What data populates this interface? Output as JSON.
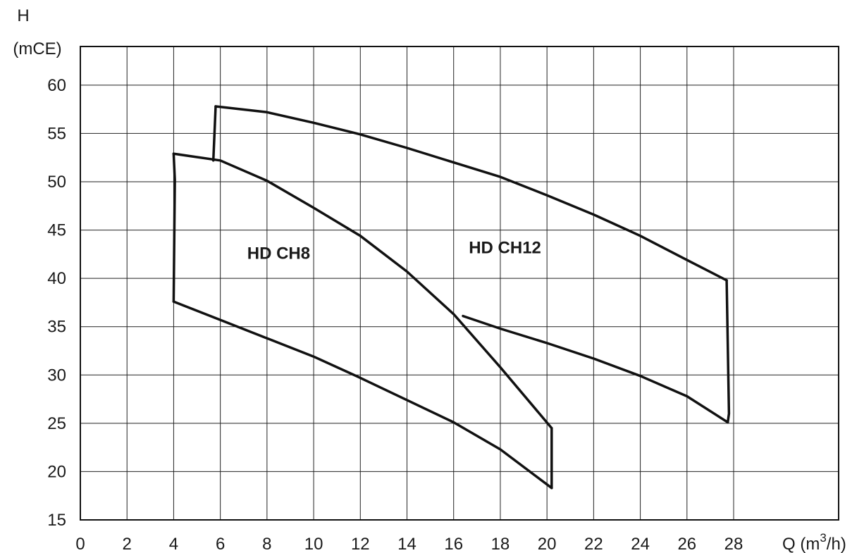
{
  "chart_data": {
    "type": "line",
    "title": "",
    "y_axis": {
      "label_line1": "H",
      "label_line2": "(mCE)",
      "ylim": [
        15,
        64
      ],
      "ticks": [
        15,
        20,
        25,
        30,
        35,
        40,
        45,
        50,
        55,
        60
      ]
    },
    "x_axis": {
      "label_prefix": "Q (m",
      "label_sup": "3",
      "label_suffix": "/h)",
      "xlim": [
        0,
        32.5
      ],
      "ticks": [
        0,
        2,
        4,
        6,
        8,
        10,
        12,
        14,
        16,
        18,
        20,
        22,
        24,
        26,
        28
      ]
    },
    "grid": true,
    "series": [
      {
        "name": "HD CH8",
        "label_at": [
          8.5,
          42
        ],
        "upper_curve": [
          [
            4.0,
            52.9
          ],
          [
            6,
            52.2
          ],
          [
            8,
            50.1
          ],
          [
            10,
            47.3
          ],
          [
            12,
            44.4
          ],
          [
            14,
            40.7
          ],
          [
            16,
            36.3
          ],
          [
            18,
            30.8
          ],
          [
            20.2,
            24.5
          ]
        ],
        "right_edge": [
          [
            20.2,
            24.5
          ],
          [
            20.2,
            18.3
          ]
        ],
        "lower_curve": [
          [
            20.2,
            18.3
          ],
          [
            18,
            22.3
          ],
          [
            16,
            25.1
          ],
          [
            14,
            27.4
          ],
          [
            12,
            29.7
          ],
          [
            10,
            31.9
          ],
          [
            8,
            33.8
          ],
          [
            6,
            35.7
          ],
          [
            4.0,
            37.6
          ]
        ],
        "left_edge": [
          [
            4.0,
            37.6
          ],
          [
            4.05,
            50.2
          ],
          [
            4.0,
            52.9
          ]
        ]
      },
      {
        "name": "HD CH12",
        "label_at": [
          18.2,
          42.6
        ],
        "upper_curve": [
          [
            5.8,
            57.8
          ],
          [
            8,
            57.2
          ],
          [
            10,
            56.1
          ],
          [
            12,
            54.9
          ],
          [
            14,
            53.5
          ],
          [
            16,
            52.0
          ],
          [
            18,
            50.5
          ],
          [
            20,
            48.6
          ],
          [
            22,
            46.6
          ],
          [
            24,
            44.4
          ],
          [
            26,
            41.9
          ],
          [
            27.7,
            39.8
          ]
        ],
        "right_edge": [
          [
            27.7,
            39.8
          ],
          [
            27.8,
            26.0
          ],
          [
            27.75,
            25.1
          ]
        ],
        "lower_curve": [
          [
            27.75,
            25.1
          ],
          [
            26,
            27.8
          ],
          [
            24,
            29.9
          ],
          [
            22,
            31.7
          ],
          [
            20,
            33.3
          ],
          [
            18,
            34.8
          ],
          [
            16.4,
            36.1
          ]
        ],
        "left_edge": [
          [
            5.7,
            52.2
          ],
          [
            5.8,
            57.8
          ]
        ]
      }
    ]
  }
}
